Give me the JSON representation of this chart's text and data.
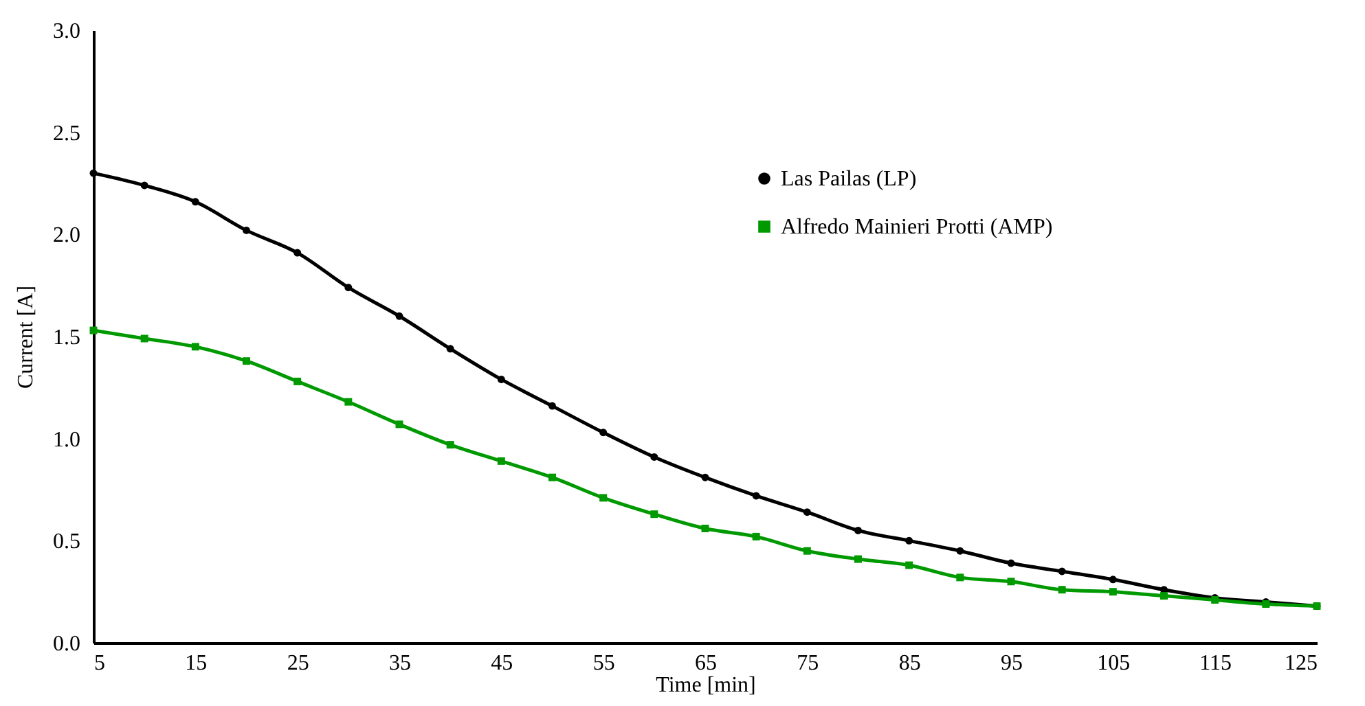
{
  "chart_data": {
    "type": "line",
    "xlabel": "Time [min]",
    "ylabel": "Current [A]",
    "x": [
      5,
      10,
      15,
      20,
      25,
      30,
      35,
      40,
      45,
      50,
      55,
      60,
      65,
      70,
      75,
      80,
      85,
      90,
      95,
      100,
      105,
      110,
      115,
      120,
      125
    ],
    "series": [
      {
        "name": "Las Pailas (LP)",
        "color": "#000000",
        "marker": "circle",
        "values": [
          2.3,
          2.24,
          2.16,
          2.02,
          1.91,
          1.74,
          1.6,
          1.44,
          1.29,
          1.16,
          1.03,
          0.91,
          0.81,
          0.72,
          0.64,
          0.55,
          0.5,
          0.45,
          0.39,
          0.35,
          0.31,
          0.26,
          0.22,
          0.2,
          0.18
        ]
      },
      {
        "name": "Alfredo Mainieri Protti (AMP)",
        "color": "#009900",
        "marker": "square",
        "values": [
          1.53,
          1.49,
          1.45,
          1.38,
          1.28,
          1.18,
          1.07,
          0.97,
          0.89,
          0.81,
          0.71,
          0.63,
          0.56,
          0.52,
          0.45,
          0.41,
          0.38,
          0.32,
          0.3,
          0.26,
          0.25,
          0.23,
          0.21,
          0.19,
          0.18
        ]
      }
    ],
    "xlim": [
      5,
      125
    ],
    "xticks": [
      5,
      15,
      25,
      35,
      45,
      55,
      65,
      75,
      85,
      95,
      105,
      115,
      125
    ],
    "ylim": [
      0,
      3
    ],
    "yticks": [
      {
        "value": 0,
        "label": "0.0"
      },
      {
        "value": 0.5,
        "label": "0.5"
      },
      {
        "value": 1,
        "label": "1.0"
      },
      {
        "value": 1.5,
        "label": "1.5"
      },
      {
        "value": 2,
        "label": "2.0"
      },
      {
        "value": 2.5,
        "label": "2.5"
      },
      {
        "value": 3,
        "label": "3.0"
      }
    ],
    "grid": false,
    "legend": "top right",
    "line_style": "solid"
  }
}
